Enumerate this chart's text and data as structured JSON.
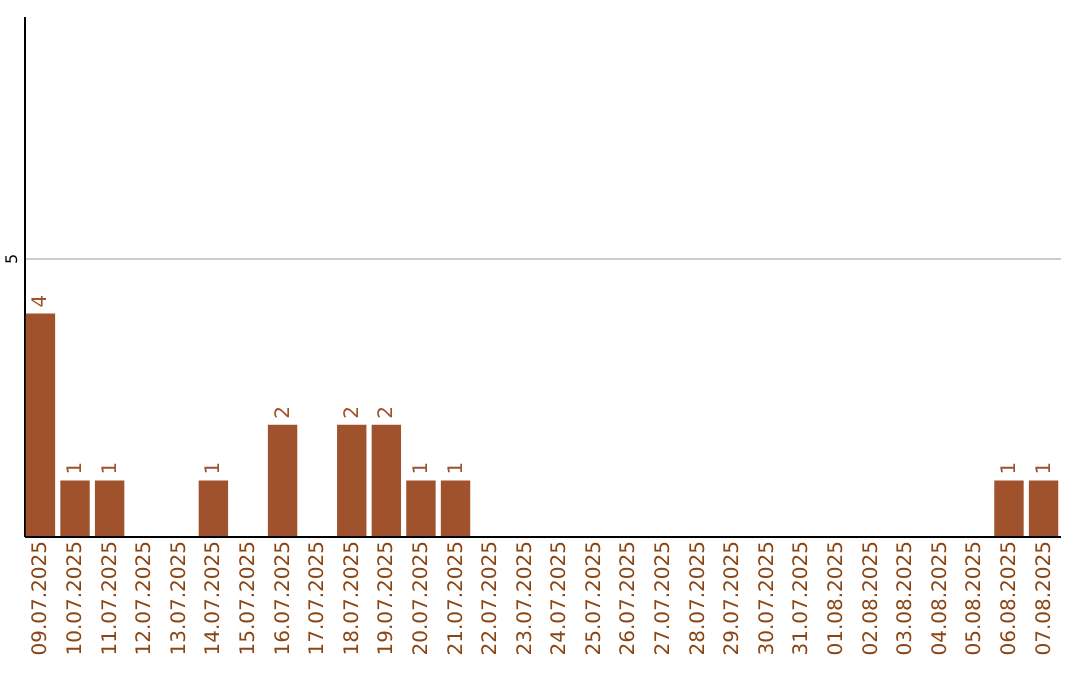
{
  "chart_data": {
    "type": "bar",
    "categories": [
      "09.07.2025",
      "10.07.2025",
      "11.07.2025",
      "12.07.2025",
      "13.07.2025",
      "14.07.2025",
      "15.07.2025",
      "16.07.2025",
      "17.07.2025",
      "18.07.2025",
      "19.07.2025",
      "20.07.2025",
      "21.07.2025",
      "22.07.2025",
      "23.07.2025",
      "24.07.2025",
      "25.07.2025",
      "26.07.2025",
      "27.07.2025",
      "28.07.2025",
      "29.07.2025",
      "30.07.2025",
      "31.07.2025",
      "01.08.2025",
      "02.08.2025",
      "03.08.2025",
      "04.08.2025",
      "05.08.2025",
      "06.08.2025",
      "07.08.2025"
    ],
    "values": [
      4,
      1,
      1,
      0,
      0,
      1,
      0,
      2,
      0,
      2,
      2,
      1,
      1,
      0,
      0,
      0,
      0,
      0,
      0,
      0,
      0,
      0,
      0,
      0,
      0,
      0,
      0,
      0,
      1,
      1
    ],
    "value_labels": [
      "4",
      "1",
      "1",
      null,
      null,
      "1",
      null,
      "2",
      null,
      "2",
      "2",
      "1",
      "1",
      null,
      null,
      null,
      null,
      null,
      null,
      null,
      null,
      null,
      null,
      null,
      null,
      null,
      null,
      null,
      "1",
      "1"
    ],
    "color": "#a0522d",
    "ylim": [
      0,
      9.35
    ],
    "yticks": [
      5
    ],
    "grid": "y"
  }
}
